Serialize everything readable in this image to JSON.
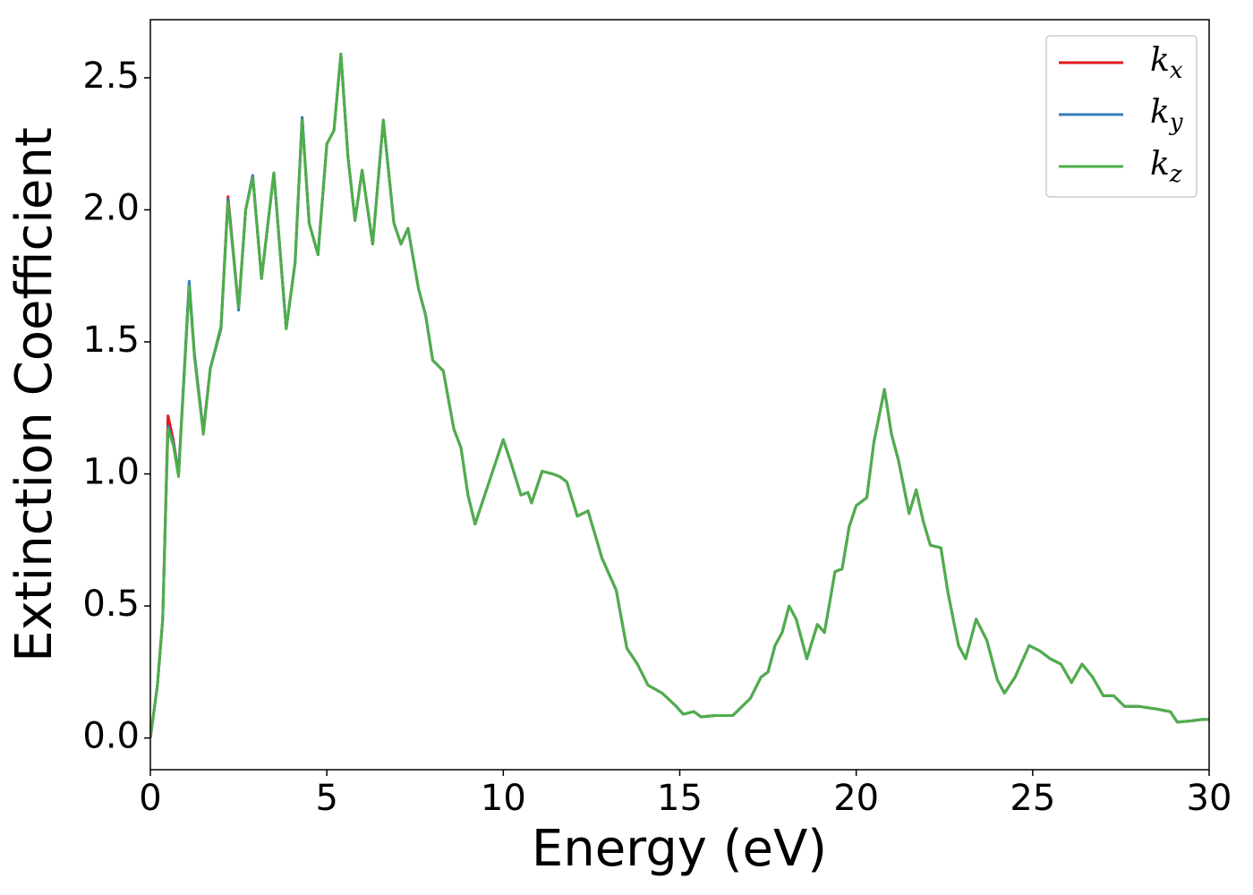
{
  "chart_data": {
    "type": "line",
    "xlabel": "Energy (eV)",
    "ylabel": "Extinction Coefficient",
    "x": [
      0,
      0.2,
      0.35,
      0.5,
      0.65,
      0.8,
      1.1,
      1.25,
      1.5,
      1.7,
      2.0,
      2.2,
      2.5,
      2.7,
      2.9,
      3.15,
      3.5,
      3.85,
      4.1,
      4.3,
      4.5,
      4.75,
      5.0,
      5.2,
      5.4,
      5.6,
      5.8,
      6.0,
      6.3,
      6.6,
      6.9,
      7.1,
      7.3,
      7.6,
      7.8,
      8.0,
      8.3,
      8.6,
      8.8,
      9.0,
      9.2,
      9.5,
      9.8,
      10.0,
      10.2,
      10.5,
      10.7,
      10.8,
      11.1,
      11.4,
      11.6,
      11.8,
      12.1,
      12.4,
      12.6,
      12.8,
      13.2,
      13.5,
      13.8,
      14.1,
      14.5,
      14.9,
      15.1,
      15.4,
      15.6,
      16.0,
      16.5,
      17.0,
      17.3,
      17.5,
      17.7,
      17.9,
      18.1,
      18.3,
      18.6,
      18.9,
      19.1,
      19.4,
      19.6,
      19.8,
      20.0,
      20.3,
      20.5,
      20.8,
      21.0,
      21.2,
      21.5,
      21.7,
      21.9,
      22.1,
      22.4,
      22.6,
      22.9,
      23.1,
      23.4,
      23.7,
      24.0,
      24.2,
      24.5,
      24.9,
      25.2,
      25.5,
      25.8,
      26.1,
      26.4,
      26.7,
      27.0,
      27.3,
      27.6,
      28.0,
      28.5,
      28.9,
      29.1,
      29.5,
      29.8,
      30.0
    ],
    "series": [
      {
        "name": "k_x",
        "color": "#e41a1c",
        "values": [
          0.0,
          0.2,
          0.45,
          1.22,
          1.13,
          1.0,
          1.72,
          1.45,
          1.16,
          1.4,
          1.55,
          2.05,
          1.63,
          2.0,
          2.13,
          1.74,
          2.14,
          1.55,
          1.8,
          2.35,
          1.95,
          1.83,
          2.25,
          2.3,
          2.59,
          2.2,
          1.96,
          2.15,
          1.87,
          2.34,
          1.95,
          1.87,
          1.93,
          1.7,
          1.6,
          1.43,
          1.39,
          1.17,
          1.1,
          0.92,
          0.81,
          0.93,
          1.05,
          1.13,
          1.05,
          0.92,
          0.93,
          0.89,
          1.01,
          1.0,
          0.99,
          0.97,
          0.84,
          0.86,
          0.77,
          0.68,
          0.56,
          0.34,
          0.28,
          0.2,
          0.17,
          0.12,
          0.09,
          0.1,
          0.08,
          0.085,
          0.085,
          0.15,
          0.23,
          0.25,
          0.35,
          0.4,
          0.5,
          0.45,
          0.3,
          0.43,
          0.4,
          0.63,
          0.64,
          0.8,
          0.88,
          0.91,
          1.12,
          1.32,
          1.15,
          1.05,
          0.85,
          0.94,
          0.82,
          0.73,
          0.72,
          0.55,
          0.35,
          0.3,
          0.45,
          0.37,
          0.22,
          0.17,
          0.23,
          0.35,
          0.33,
          0.3,
          0.28,
          0.21,
          0.28,
          0.23,
          0.16,
          0.16,
          0.12,
          0.12,
          0.11,
          0.1,
          0.06,
          0.065,
          0.07,
          0.07
        ]
      },
      {
        "name": "k_y",
        "color": "#377eb8",
        "values": [
          0.0,
          0.2,
          0.45,
          1.18,
          1.12,
          1.0,
          1.73,
          1.45,
          1.16,
          1.4,
          1.55,
          2.04,
          1.62,
          2.0,
          2.13,
          1.74,
          2.14,
          1.55,
          1.8,
          2.35,
          1.95,
          1.83,
          2.25,
          2.3,
          2.59,
          2.2,
          1.96,
          2.15,
          1.87,
          2.34,
          1.95,
          1.87,
          1.93,
          1.7,
          1.6,
          1.43,
          1.39,
          1.17,
          1.1,
          0.92,
          0.81,
          0.93,
          1.05,
          1.13,
          1.05,
          0.92,
          0.93,
          0.89,
          1.01,
          1.0,
          0.99,
          0.97,
          0.84,
          0.86,
          0.77,
          0.68,
          0.56,
          0.34,
          0.28,
          0.2,
          0.17,
          0.12,
          0.09,
          0.1,
          0.08,
          0.085,
          0.085,
          0.15,
          0.23,
          0.25,
          0.35,
          0.4,
          0.5,
          0.45,
          0.3,
          0.43,
          0.4,
          0.63,
          0.64,
          0.8,
          0.88,
          0.91,
          1.12,
          1.32,
          1.15,
          1.05,
          0.85,
          0.94,
          0.82,
          0.73,
          0.72,
          0.55,
          0.35,
          0.3,
          0.45,
          0.37,
          0.22,
          0.17,
          0.23,
          0.35,
          0.33,
          0.3,
          0.28,
          0.21,
          0.28,
          0.23,
          0.16,
          0.16,
          0.12,
          0.12,
          0.11,
          0.1,
          0.06,
          0.065,
          0.07,
          0.07
        ]
      },
      {
        "name": "k_z",
        "color": "#4daf4a",
        "values": [
          0.0,
          0.2,
          0.45,
          1.17,
          1.11,
          0.99,
          1.71,
          1.44,
          1.15,
          1.4,
          1.56,
          2.03,
          1.63,
          2.0,
          2.12,
          1.74,
          2.14,
          1.55,
          1.8,
          2.34,
          1.95,
          1.83,
          2.25,
          2.3,
          2.59,
          2.2,
          1.96,
          2.15,
          1.87,
          2.34,
          1.95,
          1.87,
          1.93,
          1.7,
          1.6,
          1.43,
          1.39,
          1.17,
          1.1,
          0.92,
          0.81,
          0.93,
          1.05,
          1.13,
          1.05,
          0.92,
          0.93,
          0.89,
          1.01,
          1.0,
          0.99,
          0.97,
          0.84,
          0.86,
          0.77,
          0.68,
          0.56,
          0.34,
          0.28,
          0.2,
          0.17,
          0.12,
          0.09,
          0.1,
          0.08,
          0.085,
          0.085,
          0.15,
          0.23,
          0.25,
          0.35,
          0.4,
          0.5,
          0.45,
          0.3,
          0.43,
          0.4,
          0.63,
          0.64,
          0.8,
          0.88,
          0.91,
          1.12,
          1.32,
          1.15,
          1.05,
          0.85,
          0.94,
          0.82,
          0.73,
          0.72,
          0.55,
          0.35,
          0.3,
          0.45,
          0.37,
          0.22,
          0.17,
          0.23,
          0.35,
          0.33,
          0.3,
          0.28,
          0.21,
          0.28,
          0.23,
          0.16,
          0.16,
          0.12,
          0.12,
          0.11,
          0.1,
          0.06,
          0.065,
          0.07,
          0.07
        ]
      }
    ],
    "xlim": [
      0,
      30
    ],
    "xticks": [
      0,
      5,
      10,
      15,
      20,
      25,
      30
    ],
    "ylim": [
      -0.12,
      2.72
    ],
    "yticks": [
      {
        "value": 0,
        "label": "0.0"
      },
      0.5,
      {
        "value": 1,
        "label": "1.0"
      },
      1.5,
      {
        "value": 2,
        "label": "2.0"
      },
      2.5
    ],
    "legend": "upper right",
    "grid": false
  }
}
